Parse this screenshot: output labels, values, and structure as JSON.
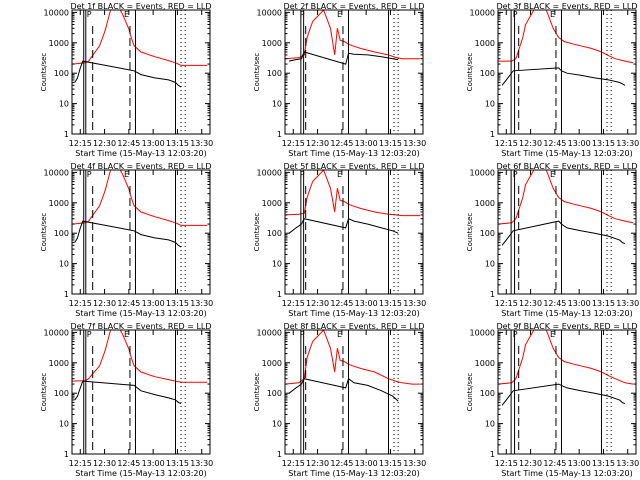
{
  "figure": {
    "colors": {
      "events": "#000000",
      "lld": "#ff0000",
      "axes": "#000000",
      "background": "#ffffff"
    }
  },
  "chart_data": [
    {
      "type": "line",
      "title": "Det 1f BLACK = Events, RED = LLD",
      "xlabel": "Start Time (15-May-13 12:03:20)",
      "ylabel": "Counts/sec",
      "yscale": "log",
      "ylim": [
        1,
        12000
      ],
      "xtick_labels": [
        "12:15",
        "12:30",
        "12:45",
        "13:00",
        "13:15",
        "13:30"
      ],
      "ytick_labels": [
        "1",
        "10",
        "100",
        "1000",
        "10000"
      ],
      "markers": [
        "P",
        "E"
      ],
      "series": [
        {
          "color": "#ff0000",
          "x": [
            0,
            10,
            12,
            20,
            24,
            28,
            35,
            37,
            41,
            43,
            45,
            50,
            60,
            70,
            75,
            77,
            79,
            85,
            92,
            98
          ],
          "values": [
            200,
            220,
            250,
            800,
            2500,
            12000,
            12000,
            8000,
            3000,
            1500,
            800,
            500,
            350,
            260,
            220,
            200,
            180,
            180,
            180,
            180
          ]
        },
        {
          "color": "#000000",
          "x": [
            2,
            4,
            6,
            7.8,
            45,
            50,
            60,
            70,
            75,
            77,
            79
          ],
          "values": [
            50,
            70,
            150,
            250,
            120,
            90,
            70,
            60,
            50,
            40,
            35
          ]
        }
      ],
      "solid_lines": [
        8.5,
        10,
        46,
        75
      ],
      "dashed_lines": [
        15,
        42
      ],
      "dotted_lines": [
        79,
        82
      ]
    },
    {
      "type": "line",
      "title": "Det 2f BLACK = Events, RED = LLD",
      "xlabel": "Start Time (15-May-13 12:03:20)",
      "ylabel": "Counts/sec",
      "yscale": "log",
      "ylim": [
        1,
        12000
      ],
      "xtick_labels": [
        "12:15",
        "12:30",
        "12:45",
        "13:00",
        "13:15",
        "13:30"
      ],
      "ytick_labels": [
        "1",
        "10",
        "100",
        "1000",
        "10000"
      ],
      "markers": [
        "P",
        "E"
      ],
      "series": [
        {
          "color": "#ff0000",
          "x": [
            0,
            10,
            14,
            16,
            20,
            28,
            33,
            36,
            38,
            40,
            43,
            46,
            49,
            55,
            65,
            75,
            80,
            85,
            92,
            98
          ],
          "values": [
            300,
            320,
            400,
            1500,
            5000,
            12000,
            3000,
            400,
            3000,
            1200,
            1100,
            900,
            800,
            650,
            500,
            400,
            330,
            300,
            300,
            300
          ]
        },
        {
          "color": "#000000",
          "x": [
            3,
            8,
            12,
            13,
            14,
            44,
            46,
            50,
            60,
            70,
            78,
            82
          ],
          "values": [
            250,
            280,
            300,
            400,
            500,
            200,
            450,
            420,
            400,
            350,
            300,
            280
          ]
        }
      ],
      "solid_lines": [
        11.5,
        13.5,
        46,
        75
      ],
      "dashed_lines": [
        15,
        42
      ],
      "dotted_lines": [
        79,
        82
      ]
    },
    {
      "type": "line",
      "title": "Det 3f BLACK = Events, RED = LLD",
      "xlabel": "Start Time (15-May-13 12:03:20)",
      "ylabel": "Counts/sec",
      "yscale": "log",
      "ylim": [
        1,
        12000
      ],
      "xtick_labels": [
        "12:15",
        "12:30",
        "12:45",
        "13:00",
        "13:15",
        "13:30"
      ],
      "ytick_labels": [
        "1",
        "10",
        "100",
        "1000",
        "10000"
      ],
      "markers": [
        "P",
        "E"
      ],
      "series": [
        {
          "color": "#ff0000",
          "x": [
            0,
            10,
            13,
            18,
            20,
            26,
            35,
            40,
            44,
            48,
            55,
            60,
            68,
            75,
            80,
            85,
            92,
            98
          ],
          "values": [
            250,
            250,
            300,
            1500,
            4000,
            12000,
            12000,
            3000,
            1500,
            1100,
            900,
            800,
            650,
            500,
            380,
            300,
            250,
            220
          ]
        },
        {
          "color": "#000000",
          "x": [
            3,
            6,
            9,
            11,
            44,
            46,
            50,
            60,
            70,
            80,
            88,
            90,
            92
          ],
          "values": [
            40,
            60,
            90,
            120,
            150,
            120,
            100,
            85,
            70,
            60,
            50,
            45,
            40
          ]
        }
      ],
      "solid_lines": [
        9.5,
        12,
        46,
        75
      ],
      "dashed_lines": [
        15,
        42
      ],
      "dotted_lines": [
        79,
        82
      ]
    },
    {
      "type": "line",
      "title": "Det 4f BLACK = Events, RED = LLD",
      "xlabel": "Start Time (15-May-13 12:03:20)",
      "ylabel": "Counts/sec",
      "yscale": "log",
      "ylim": [
        1,
        12000
      ],
      "xtick_labels": [
        "12:15",
        "12:30",
        "12:45",
        "13:00",
        "13:15",
        "13:30"
      ],
      "ytick_labels": [
        "1",
        "10",
        "100",
        "1000",
        "10000"
      ],
      "markers": [
        "P",
        "E"
      ],
      "series": [
        {
          "color": "#ff0000",
          "x": [
            0,
            10,
            12,
            20,
            24,
            28,
            35,
            37,
            41,
            43,
            45,
            50,
            60,
            70,
            75,
            77,
            79,
            85,
            92,
            98
          ],
          "values": [
            200,
            220,
            250,
            800,
            2500,
            12000,
            12000,
            8000,
            3000,
            1500,
            800,
            500,
            350,
            260,
            220,
            200,
            180,
            180,
            180,
            180
          ]
        },
        {
          "color": "#000000",
          "x": [
            2,
            4,
            6,
            7.8,
            45,
            50,
            60,
            70,
            75,
            77,
            79
          ],
          "values": [
            50,
            70,
            150,
            250,
            120,
            90,
            70,
            60,
            50,
            40,
            35
          ]
        }
      ],
      "solid_lines": [
        8.5,
        10,
        46,
        75
      ],
      "dashed_lines": [
        15,
        42
      ],
      "dotted_lines": [
        79,
        82
      ]
    },
    {
      "type": "line",
      "title": "Det 5f BLACK = Events, RED = LLD",
      "xlabel": "Start Time (15-May-13 12:03:20)",
      "ylabel": "Counts/sec",
      "yscale": "log",
      "ylim": [
        1,
        12000
      ],
      "xtick_labels": [
        "12:15",
        "12:30",
        "12:45",
        "13:00",
        "13:15",
        "13:30"
      ],
      "ytick_labels": [
        "1",
        "10",
        "100",
        "1000",
        "10000"
      ],
      "markers": [
        "P",
        "E"
      ],
      "series": [
        {
          "color": "#ff0000",
          "x": [
            0,
            10,
            14,
            16,
            20,
            28,
            33,
            36,
            38,
            40,
            43,
            46,
            49,
            55,
            65,
            75,
            80,
            85,
            92,
            98
          ],
          "values": [
            400,
            420,
            450,
            1500,
            5000,
            12000,
            3000,
            500,
            3000,
            1200,
            1100,
            900,
            800,
            650,
            500,
            420,
            400,
            380,
            380,
            380
          ]
        },
        {
          "color": "#000000",
          "x": [
            3,
            8,
            12,
            13,
            14,
            44,
            46,
            50,
            60,
            70,
            78,
            82
          ],
          "values": [
            100,
            150,
            200,
            250,
            300,
            150,
            300,
            250,
            200,
            150,
            120,
            100
          ]
        }
      ],
      "solid_lines": [
        11.5,
        13.5,
        46,
        75
      ],
      "dashed_lines": [
        15,
        42
      ],
      "dotted_lines": [
        79,
        82
      ]
    },
    {
      "type": "line",
      "title": "Det 6f BLACK = Events, RED = LLD",
      "xlabel": "Start Time (15-May-13 12:03:20)",
      "ylabel": "Counts/sec",
      "yscale": "log",
      "ylim": [
        1,
        12000
      ],
      "xtick_labels": [
        "12:15",
        "12:30",
        "12:45",
        "13:00",
        "13:15",
        "13:30"
      ],
      "ytick_labels": [
        "1",
        "10",
        "100",
        "1000",
        "10000"
      ],
      "markers": [
        "P",
        "E"
      ],
      "series": [
        {
          "color": "#ff0000",
          "x": [
            0,
            10,
            13,
            18,
            20,
            26,
            35,
            40,
            44,
            48,
            55,
            60,
            68,
            75,
            80,
            85,
            92,
            98
          ],
          "values": [
            200,
            220,
            300,
            1500,
            4000,
            12000,
            12000,
            3000,
            1500,
            1100,
            900,
            800,
            650,
            500,
            380,
            300,
            250,
            220
          ]
        },
        {
          "color": "#000000",
          "x": [
            3,
            6,
            9,
            11,
            44,
            46,
            50,
            60,
            70,
            80,
            88,
            90,
            92
          ],
          "values": [
            40,
            60,
            90,
            120,
            250,
            200,
            150,
            120,
            100,
            80,
            60,
            50,
            45
          ]
        }
      ],
      "solid_lines": [
        9.5,
        12,
        46,
        75
      ],
      "dashed_lines": [
        15,
        42
      ],
      "dotted_lines": [
        79,
        82
      ]
    },
    {
      "type": "line",
      "title": "Det 7f BLACK = Events, RED = LLD",
      "xlabel": "Start Time (15-May-13 12:03:20)",
      "ylabel": "Counts/sec",
      "yscale": "log",
      "ylim": [
        1,
        12000
      ],
      "xtick_labels": [
        "12:15",
        "12:30",
        "12:45",
        "13:00",
        "13:15",
        "13:30"
      ],
      "ytick_labels": [
        "1",
        "10",
        "100",
        "1000",
        "10000"
      ],
      "markers": [
        "P",
        "E"
      ],
      "series": [
        {
          "color": "#ff0000",
          "x": [
            0,
            10,
            12,
            20,
            24,
            28,
            35,
            37,
            41,
            43,
            45,
            50,
            60,
            70,
            75,
            77,
            79,
            85,
            92,
            98
          ],
          "values": [
            250,
            260,
            300,
            800,
            2500,
            12000,
            12000,
            8000,
            3000,
            1500,
            800,
            500,
            350,
            280,
            250,
            240,
            230,
            230,
            230,
            230
          ]
        },
        {
          "color": "#000000",
          "x": [
            2,
            4,
            6,
            7.8,
            45,
            50,
            60,
            70,
            75,
            77,
            79
          ],
          "values": [
            60,
            80,
            150,
            250,
            180,
            120,
            90,
            70,
            60,
            50,
            45
          ]
        }
      ],
      "solid_lines": [
        8.5,
        10,
        46,
        75
      ],
      "dashed_lines": [
        15,
        42
      ],
      "dotted_lines": [
        79,
        82
      ]
    },
    {
      "type": "line",
      "title": "Det 8f BLACK = Events, RED = LLD",
      "xlabel": "Start Time (15-May-13 12:03:20)",
      "ylabel": "Counts/sec",
      "yscale": "log",
      "ylim": [
        1,
        12000
      ],
      "xtick_labels": [
        "12:15",
        "12:30",
        "12:45",
        "13:00",
        "13:15",
        "13:30"
      ],
      "ytick_labels": [
        "1",
        "10",
        "100",
        "1000",
        "10000"
      ],
      "markers": [
        "P",
        "E"
      ],
      "series": [
        {
          "color": "#ff0000",
          "x": [
            0,
            10,
            14,
            16,
            20,
            28,
            33,
            36,
            38,
            40,
            43,
            46,
            49,
            55,
            65,
            75,
            80,
            85,
            92,
            98
          ],
          "values": [
            200,
            220,
            300,
            1500,
            5000,
            12000,
            3000,
            500,
            3000,
            1200,
            1100,
            900,
            800,
            650,
            500,
            300,
            250,
            220,
            200,
            200
          ]
        },
        {
          "color": "#000000",
          "x": [
            3,
            8,
            12,
            13,
            14,
            44,
            46,
            50,
            60,
            70,
            78,
            82
          ],
          "values": [
            100,
            150,
            200,
            250,
            300,
            150,
            300,
            220,
            180,
            120,
            80,
            55
          ]
        }
      ],
      "solid_lines": [
        11.5,
        13.5,
        46,
        75
      ],
      "dashed_lines": [
        15,
        42
      ],
      "dotted_lines": [
        79,
        82
      ]
    },
    {
      "type": "line",
      "title": "Det 9f BLACK = Events, RED = LLD",
      "xlabel": "Start Time (15-May-13 12:03:20)",
      "ylabel": "Counts/sec",
      "yscale": "log",
      "ylim": [
        1,
        12000
      ],
      "xtick_labels": [
        "12:15",
        "12:30",
        "12:45",
        "13:00",
        "13:15",
        "13:30"
      ],
      "ytick_labels": [
        "1",
        "10",
        "100",
        "1000",
        "10000"
      ],
      "markers": [
        "P",
        "E"
      ],
      "series": [
        {
          "color": "#ff0000",
          "x": [
            0,
            10,
            13,
            18,
            20,
            26,
            35,
            40,
            44,
            48,
            55,
            60,
            68,
            75,
            80,
            85,
            92,
            98
          ],
          "values": [
            200,
            220,
            300,
            1500,
            4000,
            12000,
            12000,
            3000,
            1500,
            1100,
            900,
            800,
            650,
            500,
            380,
            300,
            220,
            200
          ]
        },
        {
          "color": "#000000",
          "x": [
            3,
            6,
            9,
            11,
            44,
            46,
            50,
            60,
            70,
            80,
            88,
            90,
            92
          ],
          "values": [
            40,
            60,
            90,
            120,
            200,
            180,
            150,
            120,
            100,
            80,
            60,
            50,
            45
          ]
        }
      ],
      "solid_lines": [
        9.5,
        12,
        46,
        75
      ],
      "dashed_lines": [
        15,
        42
      ],
      "dotted_lines": [
        79,
        82
      ]
    }
  ]
}
